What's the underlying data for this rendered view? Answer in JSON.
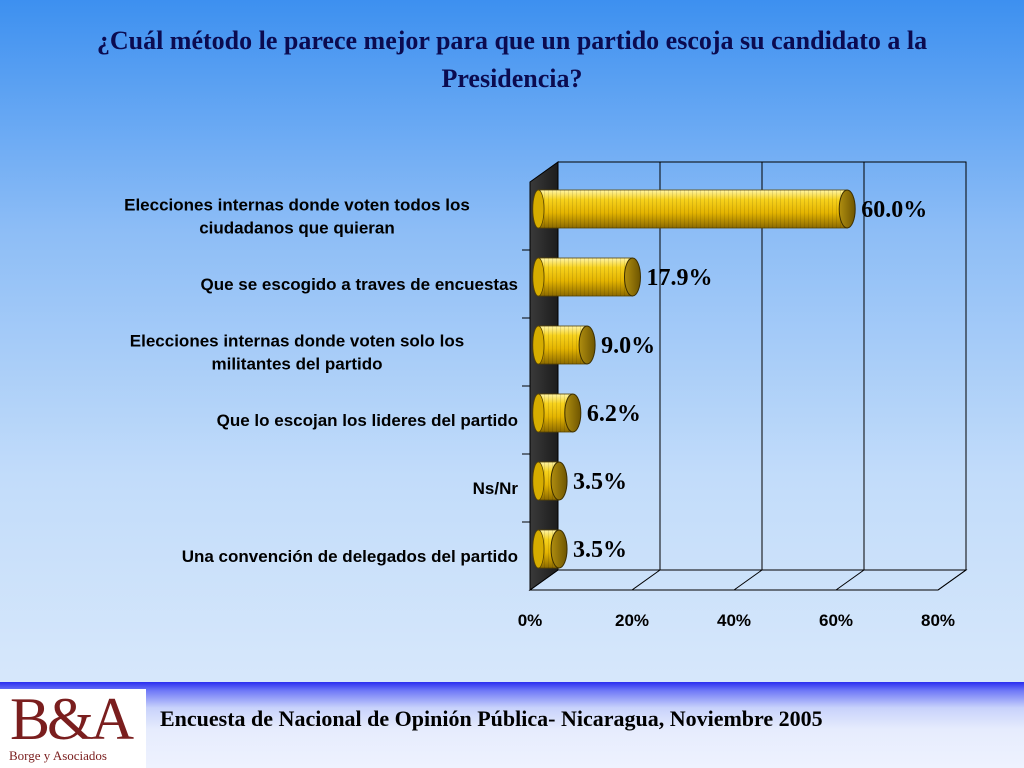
{
  "title": "¿Cuál método le parece mejor para que un partido escoja su candidato a la Presidencia?",
  "chart_data": {
    "type": "bar",
    "orientation": "horizontal",
    "three_d": true,
    "categories": [
      [
        "Elecciones internas donde voten todos los",
        "ciudadanos que quieran"
      ],
      [
        "Que se escogido a traves de encuestas"
      ],
      [
        "Elecciones internas donde voten solo los",
        "militantes del  partido"
      ],
      [
        "Que lo escojan los lideres del partido"
      ],
      [
        "Ns/Nr"
      ],
      [
        "Una convención de delegados del partido"
      ]
    ],
    "values": [
      60.0,
      17.9,
      9.0,
      6.2,
      3.5,
      3.5
    ],
    "data_labels": [
      "60.0%",
      "17.9%",
      "9.0%",
      "6.2%",
      "3.5%",
      "3.5%"
    ],
    "xlim": [
      0,
      80
    ],
    "x_ticks": [
      0,
      20,
      40,
      60,
      80
    ],
    "x_tick_labels": [
      "0%",
      "20%",
      "40%",
      "60%",
      "80%"
    ],
    "grid": true,
    "legend": "none",
    "colors": {
      "bar": "#f5c800",
      "bar_dark": "#a88500",
      "bar_cap": "#9c7d0a",
      "wall": "#2f2f2f"
    }
  },
  "footer": {
    "logo_text": "B&A",
    "logo_subtitle": "Borge y Asociados",
    "text": "Encuesta de Nacional de Opinión Pública- Nicaragua, Noviembre 2005"
  }
}
